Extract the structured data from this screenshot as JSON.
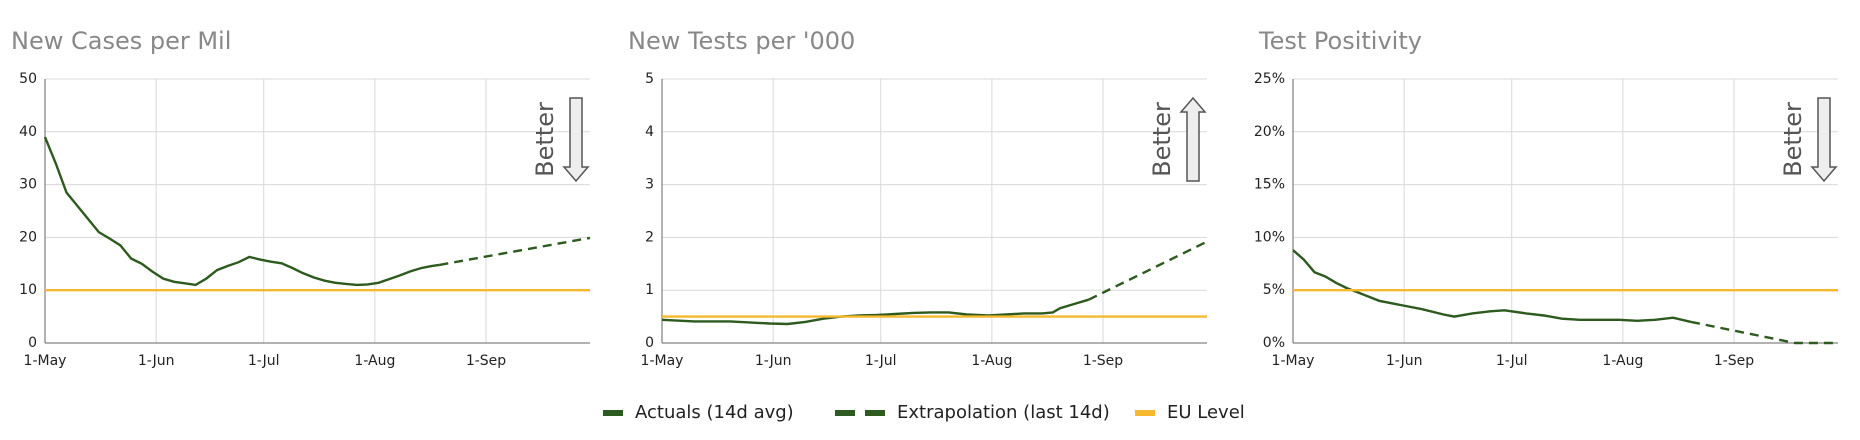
{
  "chart_data": [
    {
      "type": "line",
      "title": "New Cases per Mil",
      "annotation": {
        "text": "Better",
        "direction": "down"
      },
      "xlim": [
        "1-May",
        "30-Sep"
      ],
      "xticks": [
        "1-May",
        "1-Jun",
        "1-Jul",
        "1-Aug",
        "1-Sep"
      ],
      "ylim": [
        0,
        50
      ],
      "yticks": [
        0,
        10,
        20,
        30,
        40,
        50
      ],
      "grid": true,
      "series": [
        {
          "name": "Actuals (14d avg)",
          "color": "#2d5a1e",
          "dashed": false,
          "x": [
            "1-May",
            "4-May",
            "7-May",
            "10-May",
            "13-May",
            "16-May",
            "19-May",
            "22-May",
            "25-May",
            "28-May",
            "31-May",
            "3-Jun",
            "6-Jun",
            "9-Jun",
            "12-Jun",
            "15-Jun",
            "18-Jun",
            "21-Jun",
            "24-Jun",
            "27-Jun",
            "30-Jun",
            "3-Jul",
            "6-Jul",
            "9-Jul",
            "12-Jul",
            "15-Jul",
            "18-Jul",
            "21-Jul",
            "24-Jul",
            "27-Jul",
            "30-Jul",
            "2-Aug",
            "5-Aug",
            "8-Aug",
            "11-Aug",
            "14-Aug",
            "17-Aug",
            "19-Aug"
          ],
          "values": [
            39,
            34,
            28.5,
            26,
            23.5,
            21,
            19.8,
            18.5,
            16,
            15,
            13.5,
            12.2,
            11.6,
            11.3,
            11,
            12.2,
            13.8,
            14.6,
            15.3,
            16.3,
            15.8,
            15.4,
            15.1,
            14.2,
            13.2,
            12.4,
            11.8,
            11.4,
            11.2,
            11,
            11.1,
            11.4,
            12.1,
            12.8,
            13.6,
            14.2,
            14.6,
            14.8
          ]
        },
        {
          "name": "Extrapolation (last 14d)",
          "color": "#2d5a1e",
          "dashed": true,
          "x": [
            "19-Aug",
            "30-Sep"
          ],
          "values": [
            14.8,
            19.9
          ]
        },
        {
          "name": "EU Level",
          "color": "#f5b82e",
          "dashed": false,
          "x": [
            "1-May",
            "30-Sep"
          ],
          "values": [
            10,
            10
          ]
        }
      ]
    },
    {
      "type": "line",
      "title": "New Tests per '000",
      "annotation": {
        "text": "Better",
        "direction": "up"
      },
      "xlim": [
        "1-May",
        "30-Sep"
      ],
      "xticks": [
        "1-May",
        "1-Jun",
        "1-Jul",
        "1-Aug",
        "1-Sep"
      ],
      "ylim": [
        0,
        5
      ],
      "yticks": [
        0,
        1,
        2,
        3,
        4,
        5
      ],
      "grid": true,
      "series": [
        {
          "color": "#2d5a1e",
          "dashed": false,
          "x": [
            "1-May",
            "10-May",
            "20-May",
            "31-May",
            "5-Jun",
            "10-Jun",
            "15-Jun",
            "20-Jun",
            "25-Jun",
            "30-Jun",
            "5-Jul",
            "10-Jul",
            "15-Jul",
            "20-Jul",
            "25-Jul",
            "31-Jul",
            "5-Aug",
            "10-Aug",
            "15-Aug",
            "18-Aug",
            "20-Aug",
            "25-Aug",
            "28-Aug"
          ],
          "values": [
            0.44,
            0.41,
            0.41,
            0.37,
            0.36,
            0.4,
            0.46,
            0.5,
            0.52,
            0.53,
            0.55,
            0.57,
            0.58,
            0.58,
            0.54,
            0.52,
            0.54,
            0.56,
            0.56,
            0.58,
            0.66,
            0.76,
            0.82
          ]
        },
        {
          "color": "#2d5a1e",
          "dashed": true,
          "x": [
            "28-Aug",
            "30-Sep"
          ],
          "values": [
            0.82,
            1.92
          ]
        },
        {
          "color": "#f5b82e",
          "dashed": false,
          "x": [
            "1-May",
            "30-Sep"
          ],
          "values": [
            0.5,
            0.5
          ]
        }
      ]
    },
    {
      "type": "line",
      "title": "Test Positivity",
      "annotation": {
        "text": "Better",
        "direction": "down"
      },
      "xlim": [
        "1-May",
        "30-Sep"
      ],
      "xticks": [
        "1-May",
        "1-Jun",
        "1-Jul",
        "1-Aug",
        "1-Sep"
      ],
      "ylim": [
        0,
        25
      ],
      "yticks": [
        {
          "value": 0,
          "label": "0%"
        },
        {
          "value": 5,
          "label": "5%"
        },
        {
          "value": 10,
          "label": "10%"
        },
        {
          "value": 15,
          "label": "15%"
        },
        {
          "value": 20,
          "label": "20%"
        },
        {
          "value": 25,
          "label": "25%"
        }
      ],
      "grid": true,
      "series": [
        {
          "color": "#2d5a1e",
          "dashed": false,
          "x": [
            "1-May",
            "4-May",
            "7-May",
            "10-May",
            "13-May",
            "16-May",
            "19-May",
            "22-May",
            "25-May",
            "31-May",
            "6-Jun",
            "12-Jun",
            "15-Jun",
            "20-Jun",
            "25-Jun",
            "29-Jun",
            "5-Jul",
            "10-Jul",
            "15-Jul",
            "20-Jul",
            "31-Jul",
            "5-Aug",
            "10-Aug",
            "15-Aug",
            "20-Aug"
          ],
          "values": [
            8.8,
            7.9,
            6.7,
            6.3,
            5.7,
            5.2,
            4.8,
            4.4,
            4.0,
            3.6,
            3.2,
            2.7,
            2.5,
            2.8,
            3.0,
            3.1,
            2.8,
            2.6,
            2.3,
            2.2,
            2.2,
            2.1,
            2.2,
            2.4,
            2.0
          ]
        },
        {
          "color": "#2d5a1e",
          "dashed": true,
          "x": [
            "20-Aug",
            "18-Sep",
            "30-Sep"
          ],
          "values": [
            2.0,
            0,
            0
          ]
        },
        {
          "color": "#f5b82e",
          "dashed": false,
          "x": [
            "1-May",
            "30-Sep"
          ],
          "values": [
            5,
            5
          ]
        }
      ]
    }
  ]
}
